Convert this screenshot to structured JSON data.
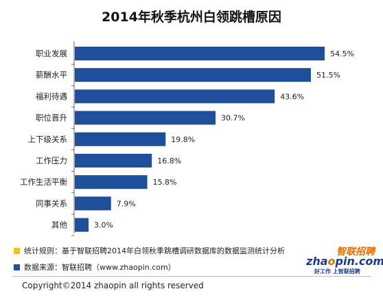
{
  "chart_data": {
    "type": "bar",
    "orientation": "horizontal",
    "title": "2014年秋季杭州白领跳槽原因",
    "categories": [
      "职业发展",
      "薪酬水平",
      "福利待遇",
      "职位晋升",
      "上下级关系",
      "工作压力",
      "工作生活平衡",
      "同事关系",
      "其他"
    ],
    "values": [
      54.5,
      51.5,
      43.6,
      30.7,
      19.8,
      16.8,
      15.8,
      7.9,
      3.0
    ],
    "value_labels": [
      "54.5%",
      "51.5%",
      "43.6%",
      "30.7%",
      "19.8%",
      "16.8%",
      "15.8%",
      "7.9%",
      "3.0%"
    ],
    "xlim": [
      0,
      60
    ],
    "bar_color": "#1f4e9b",
    "grid": false,
    "legend": "none"
  },
  "footnotes": [
    {
      "text": "统计规则：基于智联招聘2014年白领秋季跳槽调研数据库的数据监测统计分析",
      "color": "#f5c400"
    },
    {
      "text": "数据来源：智联招聘（www.zhaopin.com）",
      "color": "#1f4e9b"
    }
  ],
  "logo": {
    "name_cn": "智联招聘",
    "name_en_pre": "zha",
    "name_en_o": "o",
    "name_en_post": "pin.com",
    "slogan": "好工作 上智联招聘"
  },
  "copyright": "Copyright©2014 zhaopin all rights reserved"
}
